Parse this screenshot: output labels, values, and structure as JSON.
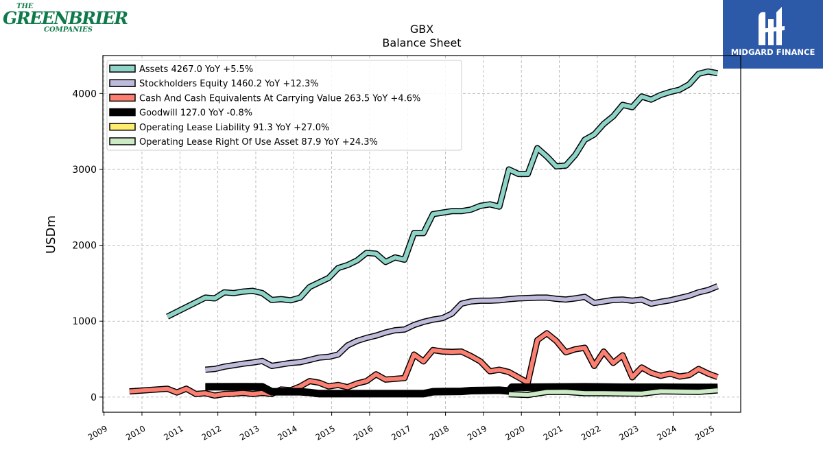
{
  "logos": {
    "left": {
      "line1": "THE",
      "line2": "GREENBRIER",
      "line3": "COMPANIES",
      "color": "#0e7a4a"
    },
    "right": {
      "brand": "MIDGARD FINANCE",
      "background": "#2c5aa8"
    }
  },
  "chart_data": {
    "type": "line",
    "title": "GBX",
    "subtitle": "Balance  Sheet",
    "xlabel": "",
    "ylabel": "USDm",
    "xlim": [
      2008.97,
      2025.78
    ],
    "ylim": [
      -200,
      4500
    ],
    "xticks": [
      "2009",
      "2010",
      "2011",
      "2012",
      "2013",
      "2014",
      "2015",
      "2016",
      "2017",
      "2018",
      "2019",
      "2020",
      "2021",
      "2022",
      "2023",
      "2024",
      "2025"
    ],
    "yticks": [
      0,
      1000,
      2000,
      3000,
      4000
    ],
    "grid": true,
    "legend_position": "top-left",
    "series": [
      {
        "name": "Assets  4267.0 YoY +5.5%",
        "color": "#8dd3c7",
        "width": 6,
        "points": [
          [
            2010.67,
            1060
          ],
          [
            2011.67,
            1310
          ],
          [
            2011.92,
            1300
          ],
          [
            2012.17,
            1380
          ],
          [
            2012.42,
            1370
          ],
          [
            2012.67,
            1390
          ],
          [
            2012.92,
            1400
          ],
          [
            2013.17,
            1370
          ],
          [
            2013.42,
            1280
          ],
          [
            2013.67,
            1290
          ],
          [
            2013.92,
            1275
          ],
          [
            2014.17,
            1310
          ],
          [
            2014.42,
            1450
          ],
          [
            2014.67,
            1510
          ],
          [
            2014.92,
            1570
          ],
          [
            2015.17,
            1700
          ],
          [
            2015.42,
            1740
          ],
          [
            2015.67,
            1800
          ],
          [
            2015.92,
            1900
          ],
          [
            2016.17,
            1890
          ],
          [
            2016.42,
            1780
          ],
          [
            2016.67,
            1840
          ],
          [
            2016.92,
            1810
          ],
          [
            2017.17,
            2160
          ],
          [
            2017.42,
            2160
          ],
          [
            2017.67,
            2410
          ],
          [
            2017.92,
            2430
          ],
          [
            2018.17,
            2450
          ],
          [
            2018.42,
            2450
          ],
          [
            2018.67,
            2470
          ],
          [
            2018.92,
            2520
          ],
          [
            2019.17,
            2540
          ],
          [
            2019.42,
            2510
          ],
          [
            2019.67,
            3000
          ],
          [
            2019.92,
            2940
          ],
          [
            2020.17,
            2940
          ],
          [
            2020.42,
            3280
          ],
          [
            2020.67,
            3170
          ],
          [
            2020.92,
            3040
          ],
          [
            2021.17,
            3050
          ],
          [
            2021.42,
            3190
          ],
          [
            2021.67,
            3390
          ],
          [
            2021.92,
            3460
          ],
          [
            2022.17,
            3600
          ],
          [
            2022.42,
            3700
          ],
          [
            2022.67,
            3850
          ],
          [
            2022.92,
            3820
          ],
          [
            2023.17,
            3960
          ],
          [
            2023.42,
            3920
          ],
          [
            2023.67,
            3980
          ],
          [
            2023.92,
            4020
          ],
          [
            2024.17,
            4050
          ],
          [
            2024.42,
            4120
          ],
          [
            2024.67,
            4260
          ],
          [
            2024.92,
            4290
          ],
          [
            2025.17,
            4267
          ]
        ]
      },
      {
        "name": "Stockholders Equity  1460.2 YoY +12.3%",
        "color": "#bebada",
        "width": 6,
        "points": [
          [
            2011.67,
            360
          ],
          [
            2011.92,
            370
          ],
          [
            2012.17,
            400
          ],
          [
            2012.42,
            420
          ],
          [
            2012.67,
            440
          ],
          [
            2012.92,
            455
          ],
          [
            2013.17,
            475
          ],
          [
            2013.42,
            410
          ],
          [
            2013.67,
            430
          ],
          [
            2013.92,
            450
          ],
          [
            2014.17,
            460
          ],
          [
            2014.42,
            490
          ],
          [
            2014.67,
            520
          ],
          [
            2014.92,
            530
          ],
          [
            2015.17,
            560
          ],
          [
            2015.42,
            680
          ],
          [
            2015.67,
            740
          ],
          [
            2015.92,
            780
          ],
          [
            2016.17,
            810
          ],
          [
            2016.42,
            850
          ],
          [
            2016.67,
            880
          ],
          [
            2016.92,
            890
          ],
          [
            2017.17,
            950
          ],
          [
            2017.42,
            990
          ],
          [
            2017.67,
            1020
          ],
          [
            2017.92,
            1040
          ],
          [
            2018.17,
            1100
          ],
          [
            2018.42,
            1230
          ],
          [
            2018.67,
            1260
          ],
          [
            2018.92,
            1270
          ],
          [
            2019.17,
            1270
          ],
          [
            2019.42,
            1275
          ],
          [
            2019.67,
            1290
          ],
          [
            2019.92,
            1300
          ],
          [
            2020.17,
            1305
          ],
          [
            2020.42,
            1310
          ],
          [
            2020.67,
            1310
          ],
          [
            2020.92,
            1295
          ],
          [
            2021.17,
            1285
          ],
          [
            2021.42,
            1300
          ],
          [
            2021.67,
            1320
          ],
          [
            2021.92,
            1240
          ],
          [
            2022.17,
            1260
          ],
          [
            2022.42,
            1280
          ],
          [
            2022.67,
            1285
          ],
          [
            2022.92,
            1270
          ],
          [
            2023.17,
            1285
          ],
          [
            2023.42,
            1230
          ],
          [
            2023.67,
            1255
          ],
          [
            2023.92,
            1275
          ],
          [
            2024.17,
            1305
          ],
          [
            2024.42,
            1335
          ],
          [
            2024.67,
            1380
          ],
          [
            2024.92,
            1410
          ],
          [
            2025.17,
            1460
          ]
        ]
      },
      {
        "name": "Cash And Cash Equivalents At Carrying Value  263.5 YoY +4.6%",
        "color": "#fb8072",
        "width": 6,
        "points": [
          [
            2009.67,
            75
          ],
          [
            2010.67,
            110
          ],
          [
            2010.92,
            60
          ],
          [
            2011.17,
            110
          ],
          [
            2011.42,
            40
          ],
          [
            2011.67,
            50
          ],
          [
            2011.92,
            20
          ],
          [
            2012.17,
            40
          ],
          [
            2012.42,
            45
          ],
          [
            2012.67,
            55
          ],
          [
            2012.92,
            40
          ],
          [
            2013.17,
            55
          ],
          [
            2013.42,
            40
          ],
          [
            2013.67,
            100
          ],
          [
            2013.92,
            90
          ],
          [
            2014.17,
            140
          ],
          [
            2014.42,
            210
          ],
          [
            2014.67,
            190
          ],
          [
            2014.92,
            140
          ],
          [
            2015.17,
            160
          ],
          [
            2015.42,
            130
          ],
          [
            2015.67,
            180
          ],
          [
            2015.92,
            210
          ],
          [
            2016.17,
            300
          ],
          [
            2016.42,
            230
          ],
          [
            2016.67,
            240
          ],
          [
            2016.92,
            250
          ],
          [
            2017.17,
            560
          ],
          [
            2017.42,
            470
          ],
          [
            2017.67,
            620
          ],
          [
            2017.92,
            600
          ],
          [
            2018.17,
            595
          ],
          [
            2018.42,
            600
          ],
          [
            2018.67,
            540
          ],
          [
            2018.92,
            470
          ],
          [
            2019.17,
            340
          ],
          [
            2019.42,
            360
          ],
          [
            2019.67,
            330
          ],
          [
            2019.92,
            260
          ],
          [
            2020.17,
            190
          ],
          [
            2020.42,
            750
          ],
          [
            2020.67,
            840
          ],
          [
            2020.92,
            740
          ],
          [
            2021.17,
            590
          ],
          [
            2021.42,
            630
          ],
          [
            2021.67,
            650
          ],
          [
            2021.92,
            410
          ],
          [
            2022.17,
            600
          ],
          [
            2022.42,
            450
          ],
          [
            2022.67,
            550
          ],
          [
            2022.92,
            260
          ],
          [
            2023.17,
            390
          ],
          [
            2023.42,
            320
          ],
          [
            2023.67,
            280
          ],
          [
            2023.92,
            310
          ],
          [
            2024.17,
            270
          ],
          [
            2024.42,
            290
          ],
          [
            2024.67,
            370
          ],
          [
            2024.92,
            310
          ],
          [
            2025.17,
            264
          ]
        ]
      },
      {
        "name": "Goodwill  127.0 YoY -0.8%",
        "color": "#000000",
        "width": 8,
        "points": [
          [
            2011.67,
            135
          ],
          [
            2012.67,
            137
          ],
          [
            2013.17,
            135
          ],
          [
            2013.42,
            70
          ],
          [
            2014.17,
            70
          ],
          [
            2014.42,
            60
          ],
          [
            2014.67,
            45
          ],
          [
            2015.67,
            45
          ],
          [
            2016.67,
            45
          ],
          [
            2017.42,
            45
          ],
          [
            2017.67,
            70
          ],
          [
            2018.42,
            75
          ],
          [
            2018.67,
            85
          ],
          [
            2019.42,
            90
          ],
          [
            2019.67,
            80
          ],
          [
            2019.75,
            130
          ],
          [
            2020.67,
            132
          ],
          [
            2021.67,
            135
          ],
          [
            2022.67,
            130
          ],
          [
            2023.67,
            130
          ],
          [
            2024.67,
            128
          ],
          [
            2025.17,
            127
          ]
        ]
      },
      {
        "name": "Operating Lease Liability  91.3 YoY +27.0%",
        "color": "#ffed6f",
        "width": 6,
        "points": [
          [
            2019.67,
            40
          ],
          [
            2020.17,
            30
          ],
          [
            2020.67,
            70
          ],
          [
            2021.17,
            72
          ],
          [
            2021.67,
            55
          ],
          [
            2022.17,
            55
          ],
          [
            2022.67,
            52
          ],
          [
            2023.17,
            50
          ],
          [
            2023.67,
            80
          ],
          [
            2024.17,
            75
          ],
          [
            2024.67,
            70
          ],
          [
            2025.17,
            91
          ]
        ]
      },
      {
        "name": "Operating Lease Right Of Use Asset  87.9 YoY +24.3%",
        "color": "#ccebc5",
        "width": 6,
        "points": [
          [
            2019.67,
            38
          ],
          [
            2020.17,
            28
          ],
          [
            2020.67,
            67
          ],
          [
            2021.17,
            68
          ],
          [
            2021.67,
            50
          ],
          [
            2022.17,
            50
          ],
          [
            2022.67,
            48
          ],
          [
            2023.17,
            45
          ],
          [
            2023.67,
            76
          ],
          [
            2024.17,
            72
          ],
          [
            2024.67,
            68
          ],
          [
            2025.17,
            88
          ]
        ]
      }
    ]
  }
}
